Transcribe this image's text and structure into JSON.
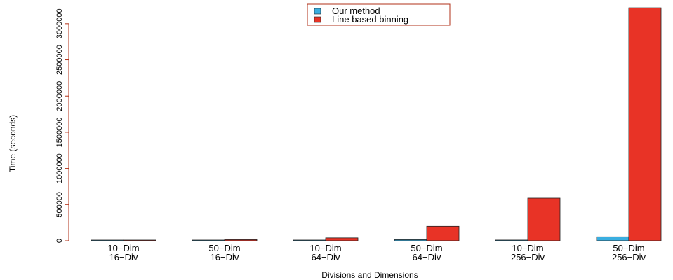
{
  "chart_data": {
    "type": "bar",
    "xlabel": "Divisions and Dimensions",
    "ylabel": "Time (seconds)",
    "ylim": [
      0,
      3250000
    ],
    "yticks": [
      0,
      500000,
      1000000,
      1500000,
      2000000,
      2500000,
      3000000
    ],
    "ytick_labels": [
      "0",
      "500000",
      "1000000",
      "1500000",
      "2000000",
      "2500000",
      "3000000"
    ],
    "categories": [
      [
        "10−Dim",
        "16−Div"
      ],
      [
        "50−Dim",
        "16−Div"
      ],
      [
        "10−Dim",
        "64−Div"
      ],
      [
        "50−Dim",
        "64−Div"
      ],
      [
        "10−Dim",
        "256−Div"
      ],
      [
        "50−Dim",
        "256−Div"
      ]
    ],
    "series": [
      {
        "name": "Our method",
        "color": "#3aaee0",
        "values": [
          500,
          2000,
          3000,
          15000,
          10000,
          55000
        ]
      },
      {
        "name": "Line based binning",
        "color": "#e83326",
        "values": [
          2000,
          15000,
          40000,
          200000,
          590000,
          3220000
        ]
      }
    ],
    "legend_position": "top-center",
    "grid": false,
    "axis_color": "#b03018"
  }
}
